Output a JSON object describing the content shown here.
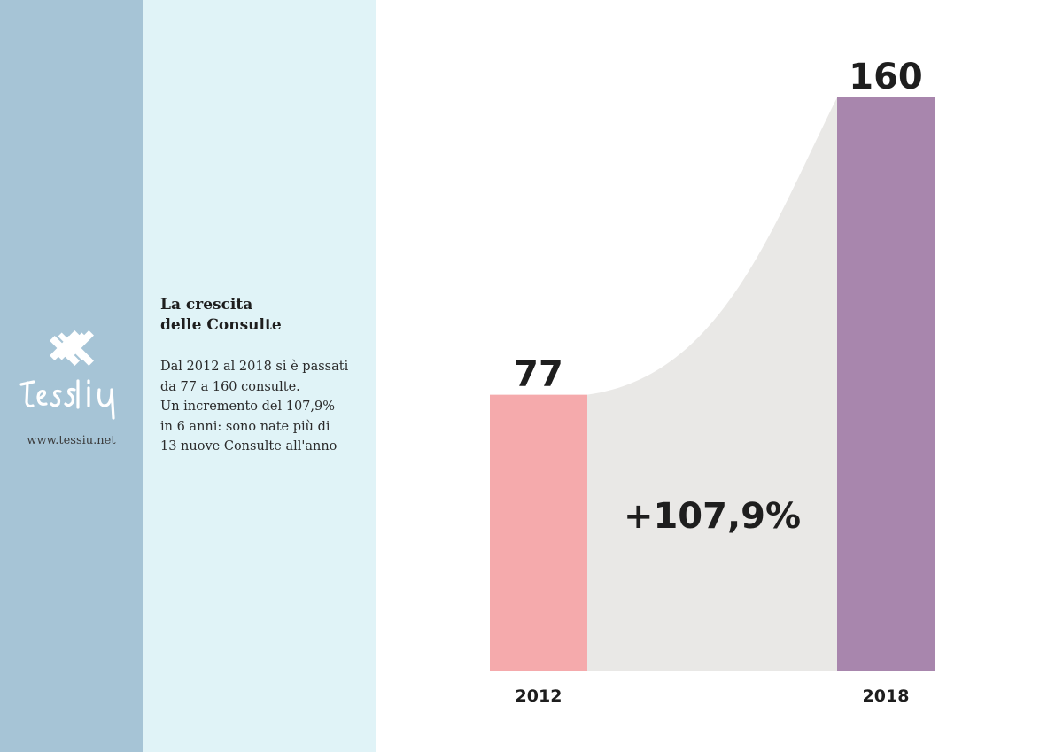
{
  "sidebar": {
    "logo_text": "tessiu",
    "url": "www.tessiu.net",
    "color": "#a6c4d6"
  },
  "panel": {
    "title_lines": [
      "La crescita",
      "delle Consulte"
    ],
    "text_lines": [
      "Dal 2012 al 2018 si è passati",
      "da 77 a 160 consulte.",
      "Un incremento del 107,9%",
      "in 6 anni: sono nate più di",
      "13 nuove Consulte all'anno"
    ],
    "color": "#e0f3f7"
  },
  "chart_data": {
    "type": "bar",
    "categories": [
      "2012",
      "2018"
    ],
    "values": [
      77,
      160
    ],
    "value_labels": [
      "77",
      "160"
    ],
    "colors": [
      "#f5aaac",
      "#a886ad"
    ],
    "connector_color": "#e9e8e6",
    "annotation": "+107,9%",
    "ylim": [
      0,
      160
    ],
    "grid": false
  }
}
